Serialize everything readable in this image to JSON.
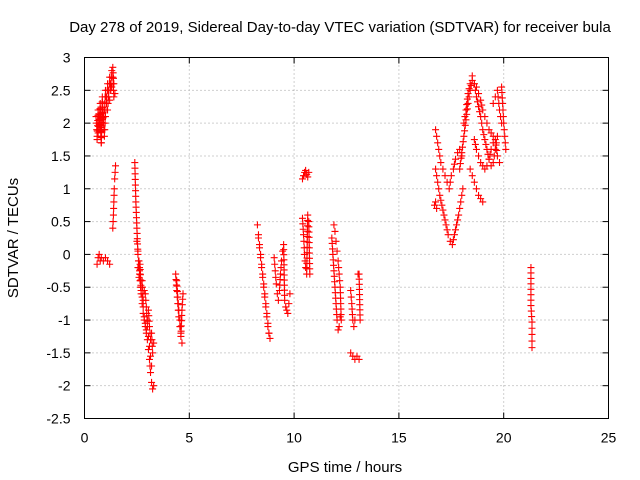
{
  "chart_data": {
    "type": "scatter",
    "title": "Day 278 of 2019, Sidereal Day-to-day VTEC variation (SDTVAR) for receiver bula",
    "xlabel": "GPS time / hours",
    "ylabel": "SDTVAR / TECUs",
    "xlim": [
      0,
      25
    ],
    "ylim": [
      -2.5,
      3
    ],
    "xticks": [
      "0",
      "5",
      "10",
      "15",
      "20",
      "25"
    ],
    "yticks": [
      "-2.5",
      "-2",
      "-1.5",
      "-1",
      "-0.5",
      "0",
      "0.5",
      "1",
      "1.5",
      "2",
      "2.5",
      "3"
    ],
    "xtick_values": [
      0,
      5,
      10,
      15,
      20,
      25
    ],
    "ytick_values": [
      -2.5,
      -2,
      -1.5,
      -1,
      -0.5,
      0,
      0.5,
      1,
      1.5,
      2,
      2.5,
      3
    ],
    "grid": true,
    "marker": "plus",
    "color": "#ff0000",
    "segments": [
      {
        "name": "s1",
        "x": [
          0.6,
          0.65,
          0.7,
          0.75,
          0.8,
          0.9,
          1.0,
          1.1,
          1.2
        ],
        "y": [
          -0.15,
          -0.05,
          0.0,
          -0.1,
          -0.05,
          -0.1,
          -0.05,
          -0.1,
          -0.15
        ]
      },
      {
        "name": "s2",
        "x": [
          0.55,
          0.6,
          0.65,
          0.7,
          0.75,
          0.8,
          0.85,
          0.9,
          0.95,
          1.0,
          1.05,
          1.1,
          1.15,
          1.2,
          1.25,
          1.3,
          1.35,
          1.4,
          1.45
        ],
        "y": [
          2.1,
          1.8,
          2.2,
          1.9,
          2.3,
          1.7,
          2.4,
          2.0,
          2.2,
          2.5,
          2.3,
          2.6,
          2.4,
          2.7,
          2.5,
          2.8,
          2.85,
          2.6,
          2.45
        ]
      },
      {
        "name": "s3",
        "x": [
          0.6,
          0.65,
          0.7,
          0.75,
          0.8,
          0.85,
          0.9,
          0.95,
          1.0,
          1.05,
          1.1,
          1.15,
          1.2,
          1.25,
          1.3,
          1.35,
          1.4
        ],
        "y": [
          1.75,
          1.85,
          2.05,
          1.9,
          1.7,
          2.15,
          2.0,
          1.8,
          2.1,
          2.3,
          2.2,
          2.4,
          2.35,
          2.5,
          2.55,
          2.7,
          2.4
        ]
      },
      {
        "name": "s4",
        "x": [
          1.35,
          1.38,
          1.4,
          1.42,
          1.44,
          1.46,
          1.48
        ],
        "y": [
          0.4,
          0.6,
          0.8,
          1.0,
          1.15,
          1.25,
          1.35
        ]
      },
      {
        "name": "s5",
        "x": [
          2.4,
          2.45,
          2.5,
          2.55,
          2.6,
          2.65,
          2.7,
          2.75,
          2.8,
          2.85,
          2.9,
          2.95,
          3.0,
          3.05,
          3.1,
          3.15,
          3.2,
          3.25,
          3.3
        ],
        "y": [
          1.4,
          0.8,
          0.4,
          0.0,
          -0.2,
          -0.4,
          -0.6,
          -0.75,
          -0.9,
          -1.0,
          -1.1,
          -1.2,
          -1.3,
          -1.45,
          -1.6,
          -1.8,
          -1.95,
          -2.05,
          -2.0
        ]
      },
      {
        "name": "s6",
        "x": [
          2.5,
          2.55,
          2.6,
          2.65,
          2.7,
          2.75,
          2.8,
          2.85,
          2.9,
          2.95,
          3.0,
          3.05,
          3.1,
          3.15,
          3.2,
          3.25,
          3.3
        ],
        "y": [
          0.2,
          0.05,
          -0.1,
          -0.3,
          -0.5,
          -0.65,
          -0.8,
          -0.95,
          -1.05,
          -1.15,
          -1.0,
          -0.85,
          -1.1,
          -1.3,
          -1.2,
          -1.5,
          -1.35
        ]
      },
      {
        "name": "s7",
        "x": [
          2.55,
          2.6,
          2.65,
          2.7,
          2.75,
          2.8,
          2.85,
          2.9,
          2.95,
          3.0,
          3.05,
          3.1,
          3.15,
          3.2
        ],
        "y": [
          -0.2,
          -0.35,
          -0.15,
          -0.55,
          -0.4,
          -0.7,
          -0.55,
          -0.6,
          -0.8,
          -1.1,
          -1.25,
          -1.4,
          -1.55,
          -1.7
        ]
      },
      {
        "name": "s8",
        "x": [
          4.35,
          4.4,
          4.45,
          4.5,
          4.55,
          4.6,
          4.65,
          4.7
        ],
        "y": [
          -0.3,
          -0.55,
          -0.75,
          -0.95,
          -1.1,
          -1.25,
          -0.85,
          -0.6
        ]
      },
      {
        "name": "s9",
        "x": [
          4.4,
          4.45,
          4.5,
          4.55,
          4.6,
          4.65
        ],
        "y": [
          -0.4,
          -0.65,
          -0.85,
          -1.0,
          -1.2,
          -1.35
        ]
      },
      {
        "name": "s10",
        "x": [
          8.25,
          8.3,
          8.35,
          8.4,
          8.45,
          8.5,
          8.55,
          8.6,
          8.65,
          8.7,
          8.75,
          8.8,
          8.85
        ],
        "y": [
          0.45,
          0.3,
          0.15,
          0.0,
          -0.15,
          -0.3,
          -0.45,
          -0.6,
          -0.75,
          -0.9,
          -1.05,
          -1.2,
          -1.28
        ]
      },
      {
        "name": "s11",
        "x": [
          8.3,
          8.35,
          8.4,
          8.45,
          8.5,
          8.55,
          8.6,
          8.65,
          8.7,
          8.75,
          8.8
        ],
        "y": [
          0.25,
          0.1,
          -0.05,
          -0.2,
          -0.35,
          -0.5,
          -0.65,
          -0.8,
          -0.95,
          -1.1,
          -1.2
        ]
      },
      {
        "name": "s12",
        "x": [
          9.05,
          9.1,
          9.15,
          9.2,
          9.25,
          9.3,
          9.35,
          9.4,
          9.45,
          9.5,
          9.55,
          9.6,
          9.65,
          9.7,
          9.75,
          9.8
        ],
        "y": [
          -0.05,
          -0.25,
          -0.45,
          -0.6,
          -0.7,
          -0.55,
          -0.3,
          -0.1,
          0.05,
          0.15,
          -0.7,
          -0.8,
          -0.85,
          -0.9,
          -0.75,
          -0.6
        ]
      },
      {
        "name": "s13",
        "x": [
          10.4,
          10.45,
          10.5,
          10.55,
          10.6,
          10.65,
          10.7
        ],
        "y": [
          1.15,
          1.2,
          1.25,
          1.28,
          1.22,
          1.18,
          1.25
        ]
      },
      {
        "name": "s14",
        "x": [
          10.4,
          10.45,
          10.5,
          10.55,
          10.6,
          10.65,
          10.7,
          10.75
        ],
        "y": [
          0.55,
          0.3,
          0.0,
          -0.2,
          -0.3,
          0.6,
          0.5,
          -0.3
        ]
      },
      {
        "name": "s15",
        "x": [
          11.8,
          11.85,
          11.9,
          11.95,
          12.0,
          12.05,
          12.1,
          12.15,
          12.2
        ],
        "y": [
          0.25,
          0.0,
          -0.25,
          -0.5,
          -0.75,
          -1.0,
          -1.15,
          -1.1,
          -0.95
        ]
      },
      {
        "name": "s16",
        "x": [
          11.9,
          11.95,
          12.0,
          12.05,
          12.1,
          12.15,
          12.2,
          12.25
        ],
        "y": [
          0.45,
          0.35,
          0.2,
          0.05,
          -0.1,
          -0.3,
          -0.5,
          -1.0
        ]
      },
      {
        "name": "s17",
        "x": [
          12.7,
          12.75,
          12.8,
          12.85,
          12.9
        ],
        "y": [
          -0.55,
          -0.75,
          -1.0,
          -1.1,
          -1.0
        ]
      },
      {
        "name": "s18",
        "x": [
          12.7,
          12.8,
          12.9,
          13.0,
          13.1
        ],
        "y": [
          -1.5,
          -1.55,
          -1.6,
          -1.55,
          -1.6
        ]
      },
      {
        "name": "s19",
        "x": [
          13.05,
          13.1,
          13.15
        ],
        "y": [
          -0.3,
          -0.3,
          -1.0
        ]
      },
      {
        "name": "s20",
        "x": [
          16.75,
          16.8,
          16.85,
          16.9,
          16.95,
          17.0,
          17.1,
          17.2,
          17.3,
          17.4,
          17.5,
          17.6,
          17.7,
          17.8,
          17.9,
          18.0
        ],
        "y": [
          1.9,
          1.8,
          1.7,
          1.6,
          1.5,
          1.4,
          1.3,
          1.2,
          1.1,
          1.0,
          1.2,
          1.3,
          1.45,
          1.55,
          1.6,
          1.5
        ]
      },
      {
        "name": "s21",
        "x": [
          16.75,
          16.85,
          16.95,
          17.05,
          17.15,
          17.25,
          17.35,
          17.45,
          17.55,
          17.65,
          17.75,
          17.85,
          17.95,
          18.05
        ],
        "y": [
          1.3,
          1.1,
          0.9,
          0.75,
          0.6,
          0.45,
          0.3,
          0.2,
          0.15,
          0.3,
          0.45,
          0.6,
          0.8,
          1.0
        ]
      },
      {
        "name": "s22",
        "x": [
          16.7,
          16.75,
          16.8
        ],
        "y": [
          0.75,
          0.8,
          0.7
        ]
      },
      {
        "name": "s23",
        "x": [
          17.9,
          18.0,
          18.1,
          18.2,
          18.3,
          18.4,
          18.5,
          18.6,
          18.7,
          18.8,
          18.9,
          19.0,
          19.1,
          19.2,
          19.3,
          19.4,
          19.5,
          19.6,
          19.7,
          19.8
        ],
        "y": [
          1.3,
          1.55,
          1.8,
          2.05,
          2.3,
          2.5,
          2.65,
          2.6,
          2.55,
          2.45,
          2.35,
          2.2,
          2.1,
          2.0,
          1.9,
          1.85,
          1.8,
          1.75,
          1.5,
          1.4
        ]
      },
      {
        "name": "s24",
        "x": [
          18.1,
          18.2,
          18.3,
          18.4,
          18.5,
          18.6,
          18.7,
          18.8,
          18.9,
          19.0,
          19.1,
          19.2,
          19.3,
          19.4,
          19.5,
          19.6,
          19.7
        ],
        "y": [
          2.0,
          2.2,
          2.45,
          2.6,
          2.72,
          2.6,
          2.4,
          2.25,
          2.1,
          1.9,
          1.75,
          1.6,
          1.45,
          1.35,
          1.4,
          1.6,
          1.8
        ]
      },
      {
        "name": "s25",
        "x": [
          18.4,
          18.5,
          18.6,
          18.7,
          18.8,
          18.9,
          19.0
        ],
        "y": [
          1.3,
          1.2,
          1.1,
          1.0,
          0.9,
          0.85,
          0.8
        ]
      },
      {
        "name": "s26",
        "x": [
          18.6,
          18.7,
          18.8,
          18.9,
          19.0,
          19.1,
          19.2,
          19.3,
          19.4,
          19.5
        ],
        "y": [
          1.75,
          1.6,
          1.5,
          1.4,
          1.35,
          1.3,
          1.35,
          1.45,
          1.6,
          1.7
        ]
      },
      {
        "name": "s27",
        "x": [
          19.5,
          19.6,
          19.7,
          19.8,
          19.9
        ],
        "y": [
          2.3,
          2.4,
          2.5,
          2.2,
          2.0
        ]
      },
      {
        "name": "s28",
        "x": [
          19.9,
          19.95,
          20.0,
          20.05,
          20.1
        ],
        "y": [
          2.55,
          2.3,
          2.0,
          1.8,
          1.6
        ]
      },
      {
        "name": "s29",
        "x": [
          21.3,
          21.3,
          21.35,
          21.35,
          21.35
        ],
        "y": [
          -0.2,
          -0.78,
          -1.03,
          -1.22,
          -1.42
        ]
      }
    ]
  }
}
